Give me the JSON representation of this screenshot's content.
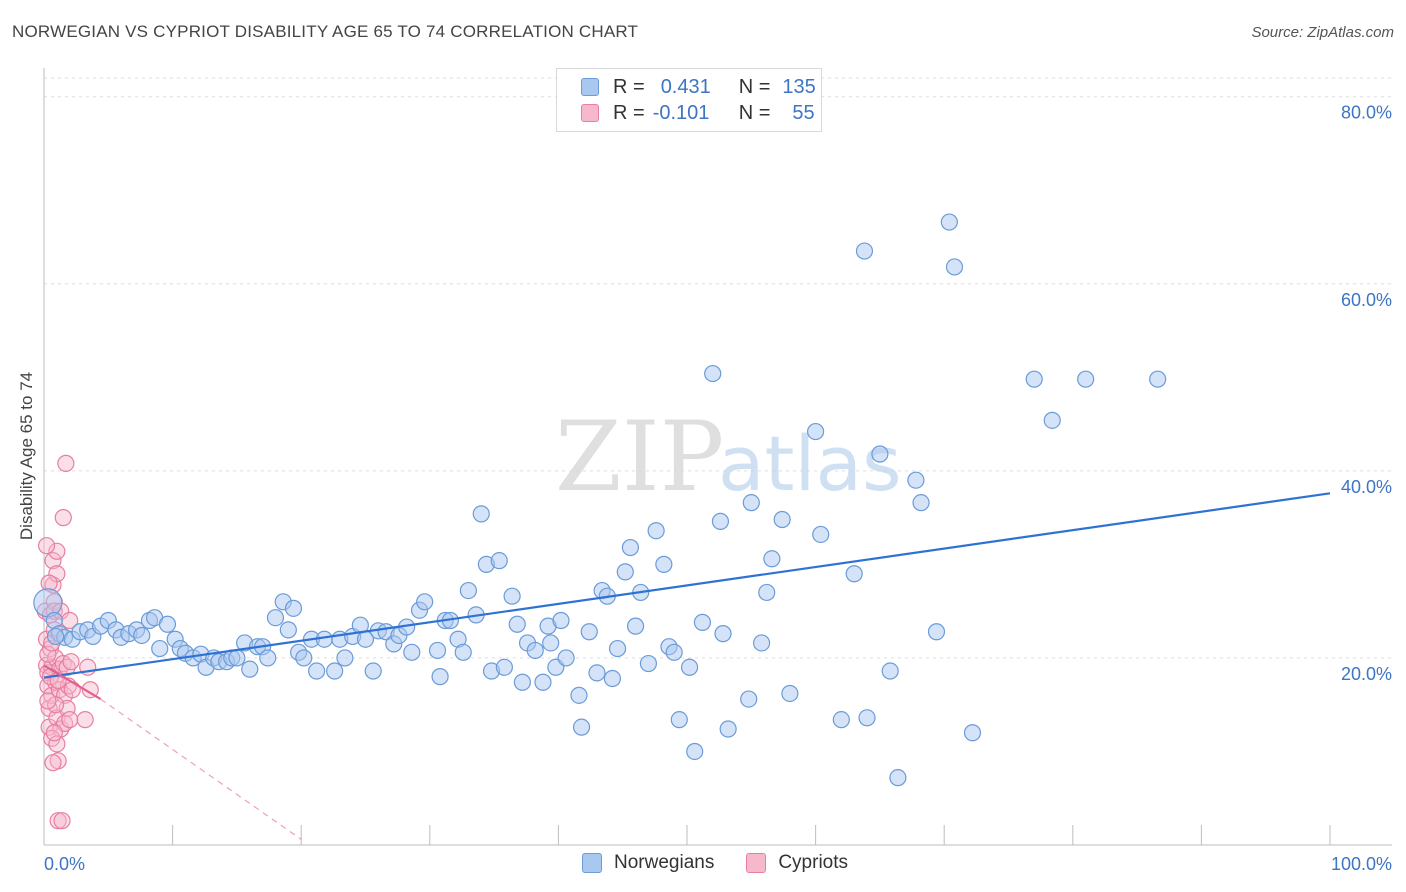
{
  "title": "NORWEGIAN VS CYPRIOT DISABILITY AGE 65 TO 74 CORRELATION CHART",
  "source": "Source: ZipAtlas.com",
  "watermark": {
    "zip": "ZIP",
    "atlas": "atlas"
  },
  "legend": {
    "norwegians": {
      "r_label": "R =",
      "r_value": "0.431",
      "n_label": "N =",
      "n_value": "135"
    },
    "cypriots": {
      "r_label": "R =",
      "r_value": "-0.101",
      "n_label": "N =",
      "n_value": "55"
    }
  },
  "bottom_legend": [
    "Norwegians",
    "Cypriots"
  ],
  "colors": {
    "blue_fill": "#a9c8ef",
    "blue_stroke": "#6b9bd8",
    "blue_line": "#2f72d3",
    "pink_fill": "#f6b8cb",
    "pink_stroke": "#e77fa1",
    "pink_line": "#e0628c",
    "axis_text": "#3d74c5"
  },
  "chart_data": {
    "type": "scatter",
    "title": "NORWEGIAN VS CYPRIOT DISABILITY AGE 65 TO 74 CORRELATION CHART",
    "xlabel": "",
    "ylabel": "Disability Age 65 to 74",
    "xlim": [
      0,
      100
    ],
    "ylim": [
      0,
      82
    ],
    "x_tick_labels": [
      "0.0%",
      "100.0%"
    ],
    "y_ticks": [
      20,
      40,
      60,
      80
    ],
    "y_tick_labels": [
      "20.0%",
      "40.0%",
      "60.0%",
      "80.0%"
    ],
    "series": [
      {
        "name": "Norwegians",
        "trend": {
          "x": [
            0,
            100
          ],
          "y": [
            17.9,
            37.6
          ]
        },
        "points": [
          [
            0.3,
            25.9
          ],
          [
            0.8,
            24.0
          ],
          [
            1.2,
            22.6
          ],
          [
            1.6,
            22.2
          ],
          [
            2.2,
            22.0
          ],
          [
            2.8,
            22.8
          ],
          [
            3.4,
            23.0
          ],
          [
            3.8,
            22.3
          ],
          [
            4.4,
            23.4
          ],
          [
            5.0,
            24.0
          ],
          [
            5.6,
            23.0
          ],
          [
            6.0,
            22.2
          ],
          [
            6.6,
            22.6
          ],
          [
            7.2,
            23.0
          ],
          [
            7.6,
            22.4
          ],
          [
            8.2,
            24.0
          ],
          [
            8.6,
            24.3
          ],
          [
            9.0,
            21.0
          ],
          [
            9.6,
            23.6
          ],
          [
            10.2,
            22.0
          ],
          [
            10.6,
            21.0
          ],
          [
            11.0,
            20.5
          ],
          [
            11.6,
            20.0
          ],
          [
            12.2,
            20.4
          ],
          [
            12.6,
            19.0
          ],
          [
            13.2,
            20.0
          ],
          [
            13.6,
            19.6
          ],
          [
            14.2,
            19.6
          ],
          [
            14.6,
            20.0
          ],
          [
            15.0,
            20.0
          ],
          [
            15.6,
            21.6
          ],
          [
            16.0,
            18.8
          ],
          [
            16.6,
            21.2
          ],
          [
            17.0,
            21.2
          ],
          [
            17.4,
            20.0
          ],
          [
            18.0,
            24.3
          ],
          [
            18.6,
            26.0
          ],
          [
            19.0,
            23.0
          ],
          [
            19.4,
            25.3
          ],
          [
            19.8,
            20.6
          ],
          [
            20.2,
            20.0
          ],
          [
            20.8,
            22.0
          ],
          [
            21.2,
            18.6
          ],
          [
            21.8,
            22.0
          ],
          [
            22.6,
            18.6
          ],
          [
            23.0,
            22.0
          ],
          [
            23.4,
            20.0
          ],
          [
            24.0,
            22.3
          ],
          [
            24.6,
            23.5
          ],
          [
            25.0,
            22.0
          ],
          [
            25.6,
            18.6
          ],
          [
            26.0,
            22.9
          ],
          [
            26.6,
            22.8
          ],
          [
            27.2,
            21.5
          ],
          [
            27.6,
            22.4
          ],
          [
            28.2,
            23.3
          ],
          [
            28.6,
            20.6
          ],
          [
            29.2,
            25.1
          ],
          [
            29.6,
            26.0
          ],
          [
            30.6,
            20.8
          ],
          [
            30.8,
            18.0
          ],
          [
            31.2,
            24.0
          ],
          [
            31.6,
            24.0
          ],
          [
            32.2,
            22.0
          ],
          [
            32.6,
            20.6
          ],
          [
            33.0,
            27.2
          ],
          [
            33.6,
            24.6
          ],
          [
            34.0,
            35.4
          ],
          [
            34.4,
            30.0
          ],
          [
            34.8,
            18.6
          ],
          [
            35.4,
            30.4
          ],
          [
            35.8,
            19.0
          ],
          [
            36.4,
            26.6
          ],
          [
            36.8,
            23.6
          ],
          [
            37.2,
            17.4
          ],
          [
            37.6,
            21.6
          ],
          [
            38.2,
            20.8
          ],
          [
            38.8,
            17.4
          ],
          [
            39.2,
            23.4
          ],
          [
            39.4,
            21.6
          ],
          [
            39.8,
            19.0
          ],
          [
            40.2,
            24.0
          ],
          [
            40.6,
            20.0
          ],
          [
            41.6,
            16.0
          ],
          [
            41.8,
            12.6
          ],
          [
            42.4,
            22.8
          ],
          [
            43.0,
            18.4
          ],
          [
            43.4,
            27.2
          ],
          [
            43.8,
            26.6
          ],
          [
            44.2,
            17.8
          ],
          [
            44.6,
            21.0
          ],
          [
            45.2,
            29.2
          ],
          [
            45.6,
            31.8
          ],
          [
            46.0,
            23.4
          ],
          [
            46.4,
            27.0
          ],
          [
            47.0,
            19.4
          ],
          [
            47.6,
            33.6
          ],
          [
            48.2,
            30.0
          ],
          [
            48.6,
            21.2
          ],
          [
            49.0,
            20.6
          ],
          [
            49.4,
            13.4
          ],
          [
            50.2,
            19.0
          ],
          [
            50.6,
            10.0
          ],
          [
            51.2,
            23.8
          ],
          [
            52.0,
            50.4
          ],
          [
            52.6,
            34.6
          ],
          [
            52.8,
            22.6
          ],
          [
            53.2,
            12.4
          ],
          [
            54.8,
            15.6
          ],
          [
            55.0,
            36.6
          ],
          [
            55.8,
            21.6
          ],
          [
            56.2,
            27.0
          ],
          [
            56.6,
            30.6
          ],
          [
            57.4,
            34.8
          ],
          [
            58.0,
            16.2
          ],
          [
            60.0,
            44.2
          ],
          [
            60.4,
            33.2
          ],
          [
            62.0,
            13.4
          ],
          [
            63.0,
            29.0
          ],
          [
            63.8,
            63.5
          ],
          [
            64.0,
            13.6
          ],
          [
            65.0,
            41.8
          ],
          [
            65.8,
            18.6
          ],
          [
            66.4,
            7.2
          ],
          [
            67.8,
            39.0
          ],
          [
            68.2,
            36.6
          ],
          [
            69.4,
            22.8
          ],
          [
            70.4,
            66.6
          ],
          [
            70.8,
            61.8
          ],
          [
            72.2,
            12.0
          ],
          [
            77.0,
            49.8
          ],
          [
            78.4,
            45.4
          ],
          [
            81.0,
            49.8
          ],
          [
            86.6,
            49.8
          ],
          [
            0.9,
            22.3
          ]
        ]
      },
      {
        "name": "Cypriots",
        "trend": {
          "x": [
            0,
            4.4
          ],
          "y": [
            19.2,
            15.6
          ]
        },
        "trend_extension": {
          "x": [
            4.4,
            20
          ],
          "y": [
            15.6,
            0.6
          ]
        },
        "points": [
          [
            0.1,
            25.0
          ],
          [
            0.2,
            22.0
          ],
          [
            0.2,
            19.2
          ],
          [
            0.3,
            18.4
          ],
          [
            0.3,
            17.0
          ],
          [
            0.4,
            14.6
          ],
          [
            0.4,
            12.6
          ],
          [
            0.5,
            24.6
          ],
          [
            0.5,
            21.0
          ],
          [
            0.6,
            19.0
          ],
          [
            0.6,
            16.0
          ],
          [
            0.7,
            30.4
          ],
          [
            0.7,
            27.8
          ],
          [
            0.8,
            26.0
          ],
          [
            0.8,
            25.0
          ],
          [
            0.9,
            20.0
          ],
          [
            0.9,
            17.4
          ],
          [
            1.0,
            29.0
          ],
          [
            1.0,
            31.4
          ],
          [
            1.0,
            13.6
          ],
          [
            1.1,
            9.0
          ],
          [
            1.1,
            2.6
          ],
          [
            1.2,
            18.8
          ],
          [
            1.2,
            16.6
          ],
          [
            1.3,
            25.0
          ],
          [
            1.3,
            12.4
          ],
          [
            1.4,
            2.6
          ],
          [
            1.5,
            35.0
          ],
          [
            1.5,
            19.4
          ],
          [
            1.6,
            16.0
          ],
          [
            1.6,
            13.0
          ],
          [
            1.7,
            40.8
          ],
          [
            1.8,
            19.0
          ],
          [
            1.8,
            14.6
          ],
          [
            1.9,
            17.0
          ],
          [
            2.0,
            24.0
          ],
          [
            2.0,
            13.4
          ],
          [
            2.1,
            19.6
          ],
          [
            2.2,
            16.6
          ],
          [
            3.2,
            13.4
          ],
          [
            3.4,
            19.0
          ],
          [
            3.6,
            16.6
          ],
          [
            0.2,
            32.0
          ],
          [
            0.3,
            20.4
          ],
          [
            0.5,
            18.0
          ],
          [
            0.6,
            11.4
          ],
          [
            0.7,
            8.8
          ],
          [
            0.8,
            23.0
          ],
          [
            0.9,
            15.0
          ],
          [
            1.0,
            10.8
          ],
          [
            0.4,
            28.0
          ],
          [
            0.6,
            21.6
          ],
          [
            1.1,
            17.6
          ],
          [
            0.3,
            15.4
          ],
          [
            0.8,
            12.0
          ]
        ]
      }
    ]
  }
}
